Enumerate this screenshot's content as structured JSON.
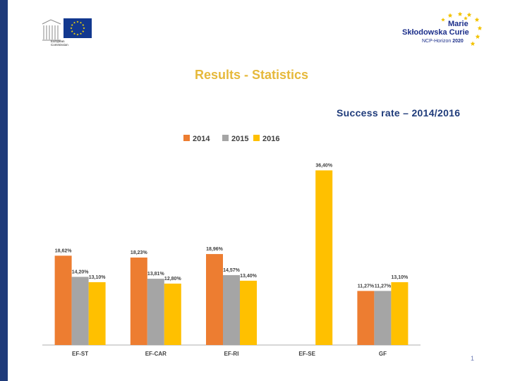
{
  "header": {
    "ec_logo_text": "European\nCommission",
    "msc_logo": {
      "line1": "Marie",
      "line2": "Skłodowska Curie",
      "line3_prefix": "NCP-",
      "line3_mid": "Horizon",
      "line3_year": "2020"
    }
  },
  "page": {
    "title": "Results - Statistics",
    "page_number": "1"
  },
  "colors": {
    "accent_title": "#e6b93b",
    "navy": "#1f3b7a",
    "s2014": "#ed7d31",
    "s2015": "#a5a5a5",
    "s2016": "#ffc000"
  },
  "chart_data": {
    "type": "bar",
    "title": "Success rate – 2014/2016",
    "categories": [
      "EF-ST",
      "EF-CAR",
      "EF-RI",
      "EF-SE",
      "GF"
    ],
    "series": [
      {
        "name": "2014",
        "color": "#ed7d31",
        "values": [
          18.62,
          18.23,
          18.96,
          null,
          11.27
        ],
        "labels": [
          "18,62%",
          "18,23%",
          "18,96%",
          "",
          "11,27%"
        ]
      },
      {
        "name": "2015",
        "color": "#a5a5a5",
        "values": [
          14.2,
          13.81,
          14.57,
          null,
          11.27
        ],
        "labels": [
          "14,20%",
          "13,81%",
          "14,57%",
          "",
          "11,27%"
        ]
      },
      {
        "name": "2016",
        "color": "#ffc000",
        "values": [
          13.1,
          12.8,
          13.4,
          36.4,
          13.1
        ],
        "labels": [
          "13,10%",
          "12,80%",
          "13,40%",
          "36,40%",
          "13,10%"
        ]
      }
    ],
    "ylim": [
      0,
      38
    ],
    "xlabel": "",
    "ylabel": "",
    "grid": false,
    "legend": "top"
  }
}
